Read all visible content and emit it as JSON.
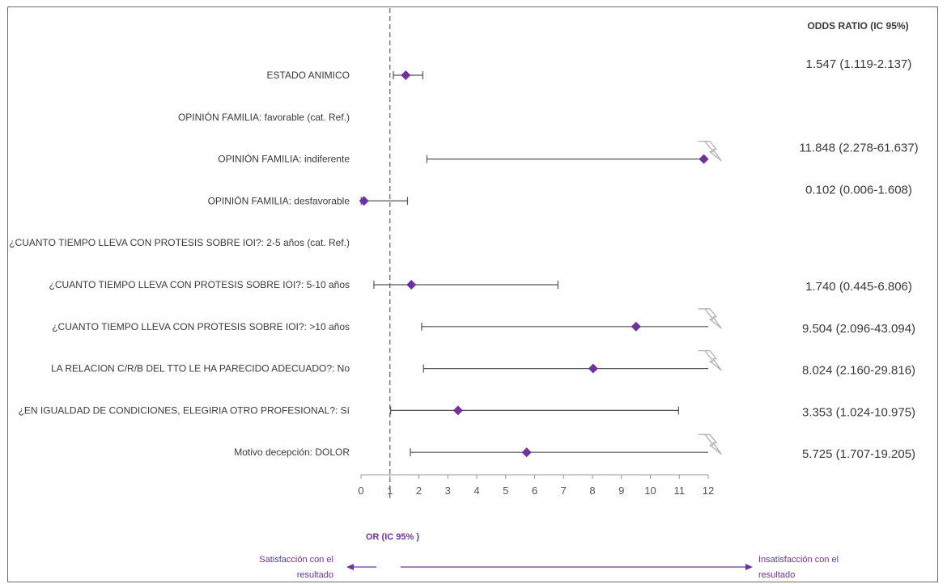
{
  "chart_data": {
    "type": "forest",
    "header": "ODDS RATIO  (IC 95%)",
    "xlabel": "OR (IC 95% )",
    "xlim": [
      0,
      12
    ],
    "ticks": [
      "0",
      "1",
      "2",
      "3",
      "4",
      "5",
      "6",
      "7",
      "8",
      "9",
      "10",
      "11",
      "12"
    ],
    "reference_line": 1,
    "marker_color": "#7030a0",
    "rows": [
      {
        "label": "ESTADO ANIMICO",
        "or": 1.547,
        "lo": 1.119,
        "hi": 2.137,
        "text": "1.547 (1.119-2.137)"
      },
      {
        "label": "OPINIÓN FAMILIA: favorable (cat. Ref.)",
        "or": null,
        "lo": null,
        "hi": null,
        "text": ""
      },
      {
        "label": "OPINIÓN FAMILIA: indiferente",
        "or": 11.848,
        "lo": 2.278,
        "hi": 61.637,
        "text": "11.848 (2.278-61.637)",
        "truncated": true
      },
      {
        "label": "OPINIÓN FAMILIA: desfavorable",
        "or": 0.102,
        "lo": 0.006,
        "hi": 1.608,
        "text": "0.102 (0.006-1.608)"
      },
      {
        "label": "¿CUANTO TIEMPO LLEVA CON PROTESIS SOBRE IOI?: 2-5 años  (cat. Ref.)",
        "or": null,
        "lo": null,
        "hi": null,
        "text": ""
      },
      {
        "label": "¿CUANTO TIEMPO LLEVA CON PROTESIS SOBRE IOI?: 5-10 años",
        "or": 1.74,
        "lo": 0.445,
        "hi": 6.806,
        "text": "1.740 (0.445-6.806)"
      },
      {
        "label": "¿CUANTO TIEMPO LLEVA CON PROTESIS SOBRE IOI?: >10 años",
        "or": 9.504,
        "lo": 2.096,
        "hi": 43.094,
        "text": "9.504 (2.096-43.094)",
        "truncated": true
      },
      {
        "label": "LA RELACION C/R/B DEL TTO LE HA PARECIDO ADECUADO?: No",
        "or": 8.024,
        "lo": 2.16,
        "hi": 29.816,
        "text": "8.024 (2.160-29.816)",
        "truncated": true
      },
      {
        "label": "¿EN IGUALDAD DE CONDICIONES, ELEGIRIA OTRO PROFESIONAL?: Sí",
        "or": 3.353,
        "lo": 1.024,
        "hi": 10.975,
        "text": "3.353 (1.024-10.975)"
      },
      {
        "label": "Motivo decepción: DOLOR",
        "or": 5.725,
        "lo": 1.707,
        "hi": 19.205,
        "text": "5.725 (1.707-19.205)",
        "truncated": true
      }
    ],
    "left_arrow_label": [
      "Satisfacción con el",
      "resultado"
    ],
    "right_arrow_label": [
      "Insatisfacción con el",
      "resultado"
    ]
  }
}
